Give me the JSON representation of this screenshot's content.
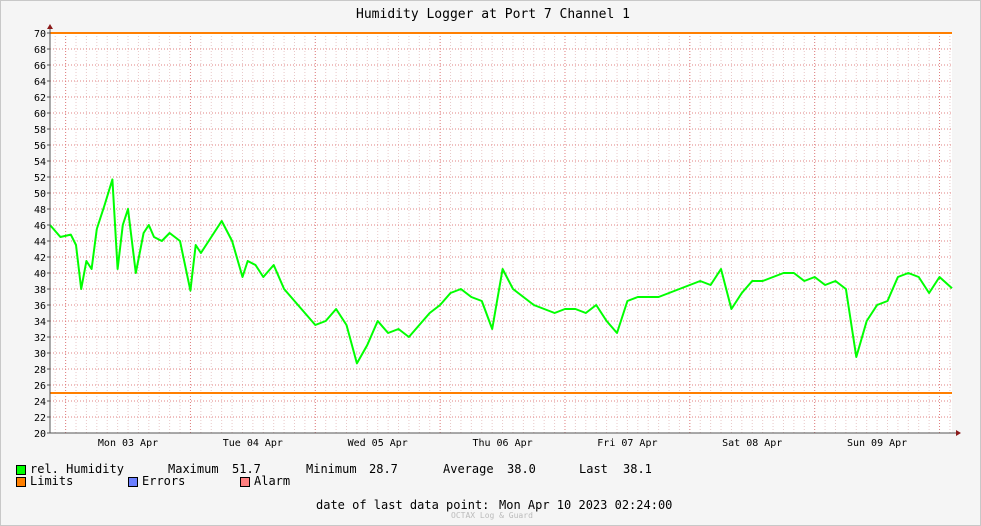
{
  "chart_data": {
    "type": "line",
    "title": "Humidity Logger at Port 7 Channel 1",
    "xlabel": "",
    "ylabel": "",
    "ylim": [
      20,
      70
    ],
    "yticks": [
      20,
      22,
      24,
      26,
      28,
      30,
      32,
      34,
      36,
      38,
      40,
      42,
      44,
      46,
      48,
      50,
      52,
      54,
      56,
      58,
      60,
      62,
      64,
      66,
      68,
      70
    ],
    "xlim": [
      "2023-04-02T21:00",
      "2023-04-10T02:24"
    ],
    "xtick_labels": [
      "Mon 03 Apr",
      "Tue 04 Apr",
      "Wed 05 Apr",
      "Thu 06 Apr",
      "Fri 07 Apr",
      "Sat 08 Apr",
      "Sun 09 Apr"
    ],
    "xtick_times": [
      "2023-04-03T12:00",
      "2023-04-04T12:00",
      "2023-04-05T12:00",
      "2023-04-06T12:00",
      "2023-04-07T12:00",
      "2023-04-08T12:00",
      "2023-04-09T12:00"
    ],
    "day_boundaries": [
      "2023-04-03T00:00",
      "2023-04-04T00:00",
      "2023-04-05T00:00",
      "2023-04-06T00:00",
      "2023-04-07T00:00",
      "2023-04-08T00:00",
      "2023-04-09T00:00",
      "2023-04-10T00:00"
    ],
    "grid": true,
    "limits": {
      "upper": 70,
      "lower": 25,
      "color": "#ff7f00"
    },
    "series": [
      {
        "name": "rel. Humidity",
        "color": "#00ff00",
        "x": [
          "2023-04-02T21:00",
          "2023-04-02T23:00",
          "2023-04-03T01:00",
          "2023-04-03T02:00",
          "2023-04-03T03:00",
          "2023-04-03T04:00",
          "2023-04-03T05:00",
          "2023-04-03T06:00",
          "2023-04-03T07:30",
          "2023-04-03T09:00",
          "2023-04-03T10:00",
          "2023-04-03T11:00",
          "2023-04-03T12:00",
          "2023-04-03T13:30",
          "2023-04-03T15:00",
          "2023-04-03T16:00",
          "2023-04-03T17:00",
          "2023-04-03T18:30",
          "2023-04-03T20:00",
          "2023-04-03T22:00",
          "2023-04-04T00:00",
          "2023-04-04T01:00",
          "2023-04-04T02:00",
          "2023-04-04T04:00",
          "2023-04-04T06:00",
          "2023-04-04T08:00",
          "2023-04-04T10:00",
          "2023-04-04T11:00",
          "2023-04-04T12:30",
          "2023-04-04T14:00",
          "2023-04-04T16:00",
          "2023-04-04T18:00",
          "2023-04-04T20:00",
          "2023-04-04T22:00",
          "2023-04-05T00:00",
          "2023-04-05T02:00",
          "2023-04-05T04:00",
          "2023-04-05T06:00",
          "2023-04-05T08:00",
          "2023-04-05T10:00",
          "2023-04-05T12:00",
          "2023-04-05T14:00",
          "2023-04-05T16:00",
          "2023-04-05T18:00",
          "2023-04-05T20:00",
          "2023-04-05T22:00",
          "2023-04-06T00:00",
          "2023-04-06T02:00",
          "2023-04-06T04:00",
          "2023-04-06T06:00",
          "2023-04-06T08:00",
          "2023-04-06T10:00",
          "2023-04-06T12:00",
          "2023-04-06T14:00",
          "2023-04-06T16:00",
          "2023-04-06T18:00",
          "2023-04-06T20:00",
          "2023-04-06T22:00",
          "2023-04-07T00:00",
          "2023-04-07T02:00",
          "2023-04-07T04:00",
          "2023-04-07T06:00",
          "2023-04-07T08:00",
          "2023-04-07T10:00",
          "2023-04-07T12:00",
          "2023-04-07T14:00",
          "2023-04-07T16:00",
          "2023-04-07T18:00",
          "2023-04-07T20:00",
          "2023-04-07T22:00",
          "2023-04-08T00:00",
          "2023-04-08T02:00",
          "2023-04-08T04:00",
          "2023-04-08T06:00",
          "2023-04-08T08:00",
          "2023-04-08T10:00",
          "2023-04-08T12:00",
          "2023-04-08T14:00",
          "2023-04-08T16:00",
          "2023-04-08T18:00",
          "2023-04-08T20:00",
          "2023-04-08T22:00",
          "2023-04-09T00:00",
          "2023-04-09T02:00",
          "2023-04-09T04:00",
          "2023-04-09T06:00",
          "2023-04-09T08:00",
          "2023-04-09T10:00",
          "2023-04-09T12:00",
          "2023-04-09T14:00",
          "2023-04-09T16:00",
          "2023-04-09T18:00",
          "2023-04-09T20:00",
          "2023-04-09T22:00",
          "2023-04-10T00:00",
          "2023-04-10T02:24"
        ],
        "values": [
          46.0,
          44.5,
          44.8,
          43.5,
          38.0,
          41.5,
          40.5,
          45.5,
          48.5,
          51.7,
          40.5,
          46.0,
          48.0,
          40.0,
          45.0,
          46.0,
          44.5,
          44.0,
          45.0,
          44.0,
          37.8,
          43.5,
          42.5,
          44.5,
          46.5,
          44.0,
          39.5,
          41.5,
          41.0,
          39.5,
          41.0,
          38.0,
          36.5,
          35.0,
          33.5,
          34.0,
          35.5,
          33.5,
          28.7,
          31.0,
          34.0,
          32.5,
          33.0,
          32.0,
          33.5,
          35.0,
          36.0,
          37.5,
          38.0,
          37.0,
          36.5,
          33.0,
          40.5,
          38.0,
          37.0,
          36.0,
          35.5,
          35.0,
          35.5,
          35.5,
          35.0,
          36.0,
          34.0,
          32.5,
          36.5,
          37.0,
          37.0,
          37.0,
          37.5,
          38.0,
          38.5,
          39.0,
          38.5,
          40.5,
          35.5,
          37.5,
          39.0,
          39.0,
          39.5,
          40.0,
          40.0,
          39.0,
          39.5,
          38.5,
          39.0,
          38.0,
          29.5,
          34.0,
          36.0,
          36.5,
          39.5,
          40.0,
          39.5,
          37.5,
          39.5,
          38.1
        ]
      }
    ]
  },
  "stats": {
    "series_name": "rel. Humidity",
    "maximum_label": "Maximum",
    "maximum_value": "51.7",
    "minimum_label": "Minimum",
    "minimum_value": "28.7",
    "average_label": "Average",
    "average_value": "38.0",
    "last_label": "Last",
    "last_value": "38.1"
  },
  "legend": {
    "humidity": {
      "label": "rel. Humidity",
      "color": "#00ff00"
    },
    "limits": {
      "label": "Limits",
      "color": "#ff7f00"
    },
    "errors": {
      "label": "Errors",
      "color": "#6b7fff"
    },
    "alarm": {
      "label": "Alarm",
      "color": "#ff7f7f"
    }
  },
  "footer": {
    "last_point_label": "date of last data point:",
    "last_point_value": "Mon Apr 10 2023 02:24:00",
    "watermark": "OCTAX Log & Guard"
  }
}
